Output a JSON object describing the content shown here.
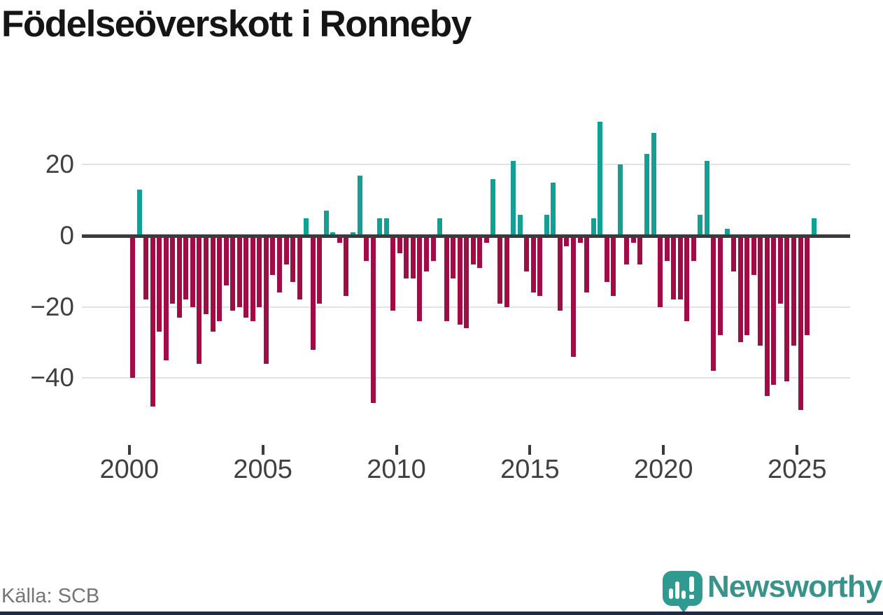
{
  "header": {
    "title": "Födelseöverskott i Ronneby"
  },
  "footer": {
    "source": "Källa: SCB",
    "logo_text": "Newsworthy"
  },
  "colors": {
    "positive": "#12a095",
    "negative": "#a10c46",
    "axis": "#3b3b3b",
    "gridline": "#e2e2e2",
    "tick_text": "#404040",
    "logo_teal": "#3a938b",
    "bottom_border": "#1d2b47"
  },
  "chart_data": {
    "type": "bar",
    "title": "Födelseöverskott i Ronneby",
    "xlabel": "",
    "ylabel": "",
    "x_unit": "quarter",
    "start": "2000 Q1",
    "end": "2025 Q3",
    "x_tick_labels": [
      "2000",
      "2005",
      "2010",
      "2015",
      "2020",
      "2025"
    ],
    "y_ticks": [
      20,
      0,
      -20,
      -40
    ],
    "y_tick_labels": [
      "20",
      "0",
      "−20",
      "−40"
    ],
    "ylim": [
      -52,
      34
    ],
    "grid": "horizontal",
    "legend": "none",
    "positive_color": "#12a095",
    "negative_color": "#a10c46",
    "values": [
      -40,
      13,
      -18,
      -48,
      -27,
      -35,
      -19,
      -23,
      -18,
      -20,
      -36,
      -22,
      -27,
      -24,
      -14,
      -21,
      -20,
      -23,
      -24,
      -20,
      -36,
      -11,
      -16,
      -8,
      -13,
      -18,
      5,
      -32,
      -19,
      7,
      1,
      -2,
      -17,
      1,
      17,
      -7,
      -47,
      5,
      5,
      -21,
      -5,
      -12,
      -12,
      -24,
      -10,
      -7,
      5,
      -24,
      -12,
      -25,
      -26,
      -8,
      -9,
      -2,
      16,
      -19,
      -20,
      21,
      6,
      -10,
      -16,
      -17,
      6,
      15,
      -21,
      -3,
      -34,
      -2,
      -16,
      5,
      32,
      -13,
      -17,
      20,
      -8,
      -2,
      -8,
      23,
      29,
      -20,
      -7,
      -18,
      -18,
      -24,
      -7,
      6,
      21,
      -38,
      -28,
      2,
      -10,
      -30,
      -28,
      -11,
      -31,
      -45,
      -42,
      -19,
      -41,
      -31,
      -49,
      -28,
      5
    ]
  }
}
